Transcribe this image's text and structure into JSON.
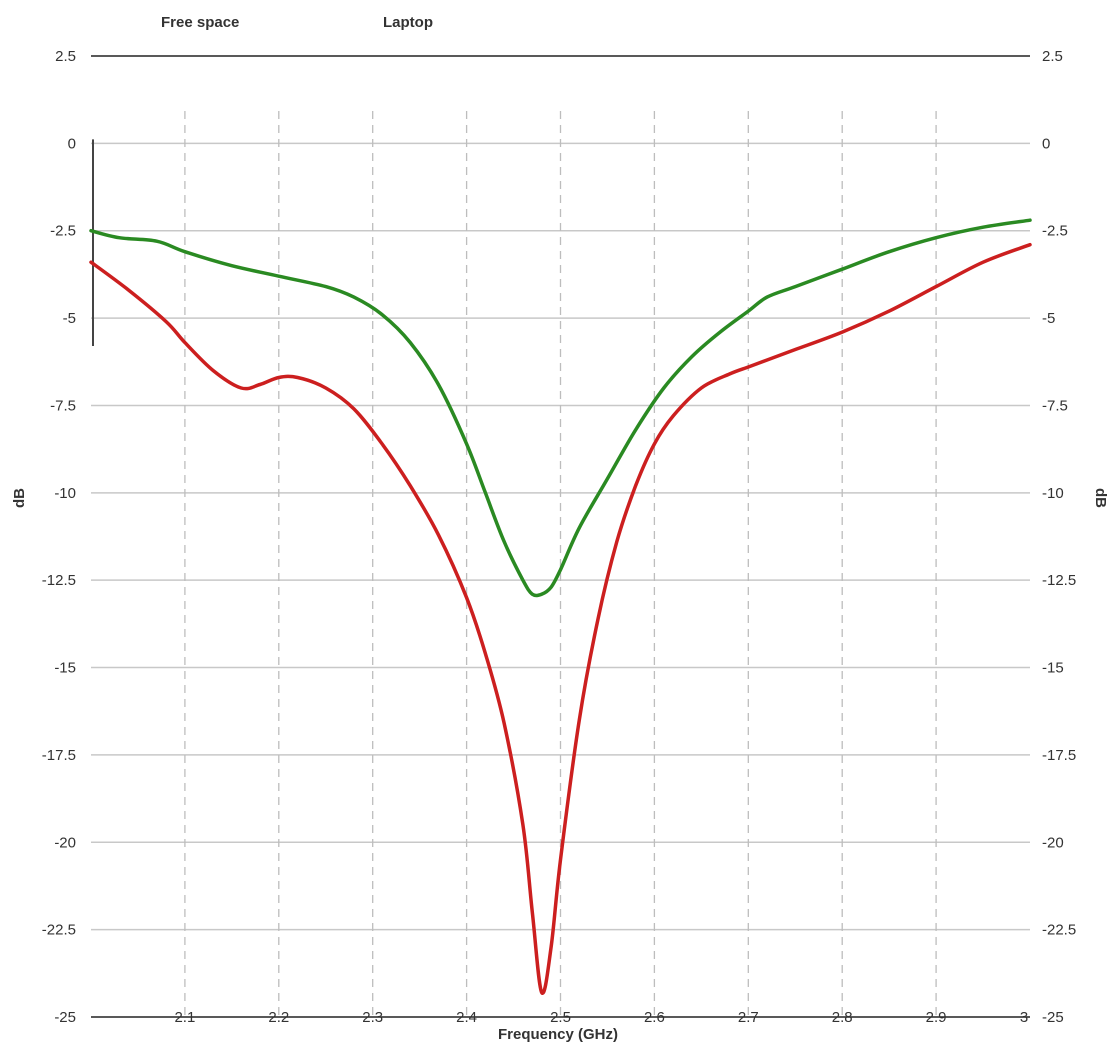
{
  "chart_data": {
    "type": "line",
    "title": "",
    "xlabel": "Frequency (GHz)",
    "ylabel": "dB",
    "ylabel_right": "dB",
    "xlim": [
      2.0,
      3.0
    ],
    "ylim": [
      -25,
      2.5
    ],
    "x_ticks": [
      "2.1",
      "2.2",
      "2.3",
      "2.4",
      "2.5",
      "2.6",
      "2.7",
      "2.8",
      "2.9",
      "3"
    ],
    "y_ticks": [
      "2.5",
      "0",
      "-2.5",
      "-5",
      "-7.5",
      "-10",
      "-12.5",
      "-15",
      "-17.5",
      "-20",
      "-22.5",
      "-25"
    ],
    "grid": true,
    "legend_position": "top-left",
    "series": [
      {
        "name": "Free space",
        "color": "#cc1f1f",
        "x": [
          2.0,
          2.04,
          2.08,
          2.1,
          2.13,
          2.16,
          2.18,
          2.2,
          2.22,
          2.25,
          2.28,
          2.31,
          2.34,
          2.37,
          2.4,
          2.42,
          2.44,
          2.46,
          2.47,
          2.48,
          2.49,
          2.5,
          2.52,
          2.54,
          2.56,
          2.58,
          2.6,
          2.62,
          2.65,
          2.68,
          2.7,
          2.72,
          2.75,
          2.8,
          2.85,
          2.9,
          2.95,
          3.0
        ],
        "values": [
          -3.4,
          -4.2,
          -5.1,
          -5.7,
          -6.5,
          -7.0,
          -6.9,
          -6.7,
          -6.7,
          -7.0,
          -7.6,
          -8.6,
          -9.8,
          -11.2,
          -13.0,
          -14.6,
          -16.6,
          -19.5,
          -22.0,
          -24.3,
          -23.0,
          -20.5,
          -16.5,
          -13.6,
          -11.4,
          -9.8,
          -8.6,
          -7.8,
          -7.0,
          -6.6,
          -6.4,
          -6.2,
          -5.9,
          -5.4,
          -4.8,
          -4.1,
          -3.4,
          -2.9
        ]
      },
      {
        "name": "Laptop",
        "color": "#2a8a22",
        "x": [
          2.0,
          2.03,
          2.07,
          2.1,
          2.15,
          2.2,
          2.25,
          2.28,
          2.31,
          2.34,
          2.37,
          2.4,
          2.42,
          2.44,
          2.46,
          2.47,
          2.48,
          2.49,
          2.5,
          2.52,
          2.55,
          2.58,
          2.61,
          2.64,
          2.67,
          2.7,
          2.72,
          2.75,
          2.8,
          2.85,
          2.9,
          2.95,
          3.0
        ],
        "values": [
          -2.5,
          -2.7,
          -2.8,
          -3.1,
          -3.5,
          -3.8,
          -4.1,
          -4.4,
          -4.9,
          -5.7,
          -6.9,
          -8.6,
          -10.0,
          -11.4,
          -12.5,
          -12.9,
          -12.9,
          -12.7,
          -12.2,
          -11.0,
          -9.6,
          -8.2,
          -7.0,
          -6.1,
          -5.4,
          -4.8,
          -4.4,
          -4.1,
          -3.6,
          -3.1,
          -2.7,
          -2.4,
          -2.2
        ]
      }
    ]
  }
}
